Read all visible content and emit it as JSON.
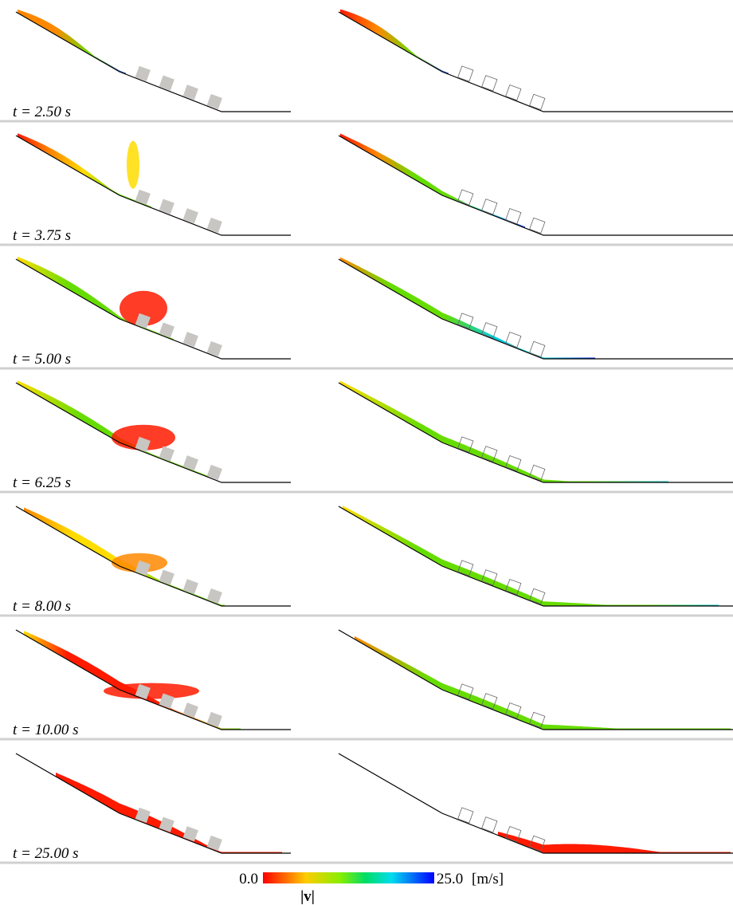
{
  "figure": {
    "panels": [
      {
        "time": "t = 2.50 s"
      },
      {
        "time": "t = 3.75 s"
      },
      {
        "time": "t = 5.00 s"
      },
      {
        "time": "t = 6.25 s"
      },
      {
        "time": "t = 8.00 s"
      },
      {
        "time": "t = 10.00 s"
      },
      {
        "time": "t = 25.00 s"
      }
    ],
    "colorbar": {
      "min": {
        "value": 0,
        "label": "0.0"
      },
      "max": {
        "value": 25,
        "label": "25.0"
      },
      "unit": "[m/s]",
      "label": "|v|"
    }
  }
}
